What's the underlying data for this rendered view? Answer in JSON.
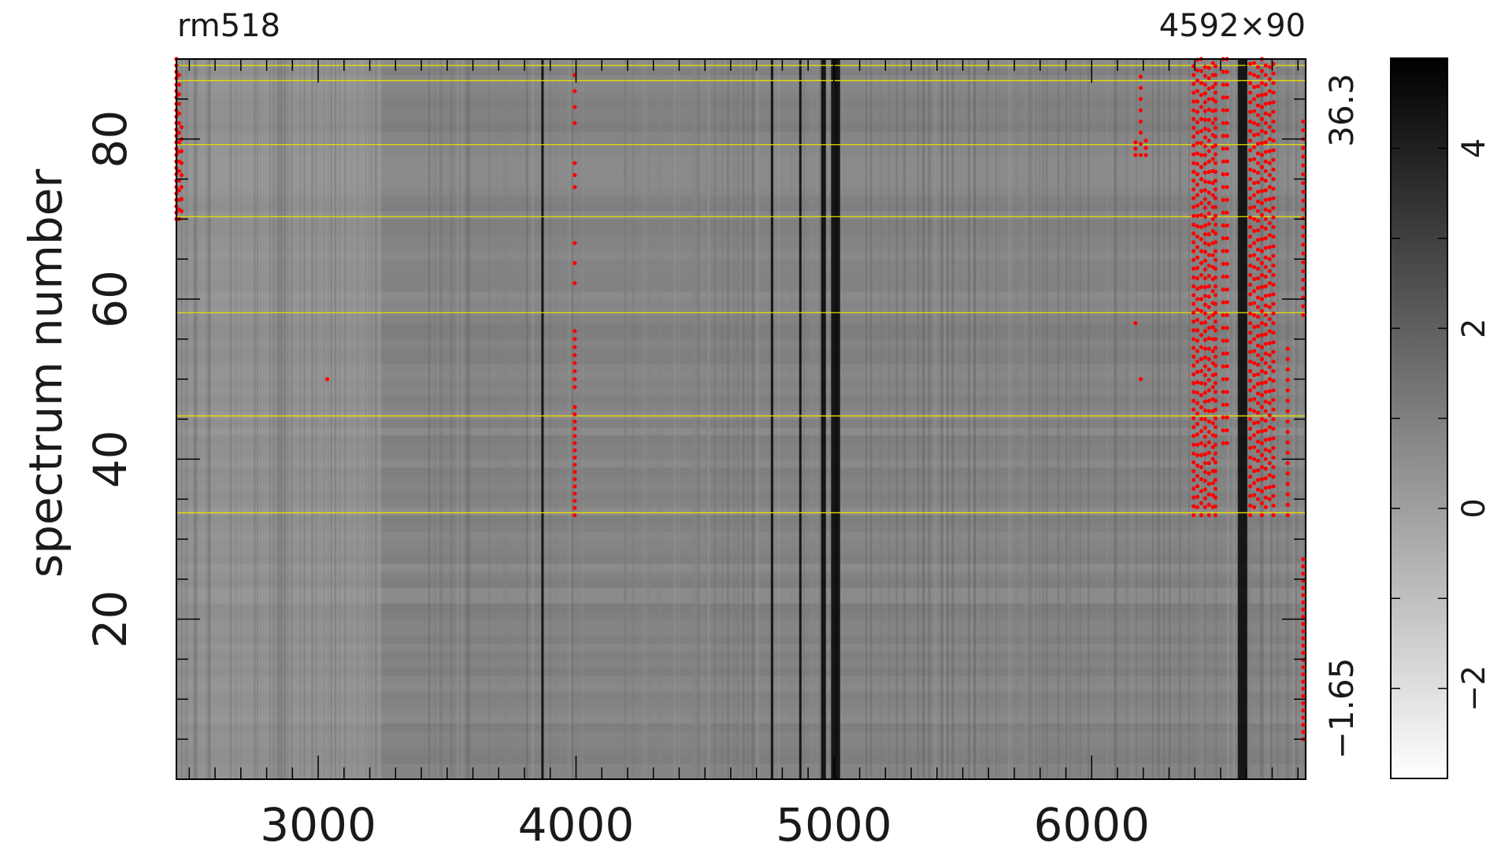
{
  "chart_data": {
    "type": "heatmap",
    "title_left": "rm518",
    "title_right": "4592×90",
    "ylabel": "spectrum number",
    "xlabel": "",
    "x_range": [
      2450,
      6830
    ],
    "y_range": [
      0,
      90
    ],
    "x_ticks": [
      "3000",
      "4000",
      "5000",
      "6000"
    ],
    "y_ticks": [
      "20",
      "40",
      "60",
      "80"
    ],
    "side_scale_labels": [
      "36.3",
      "−1.65"
    ],
    "colorbar": {
      "range": [
        -3,
        5
      ],
      "ticks": [
        "−2",
        "0",
        "2",
        "4"
      ],
      "colormap": "gray_reversed"
    },
    "yellow_lines_spectrum": [
      89.2,
      87.3,
      79.3,
      70.3,
      58.3,
      45.4,
      33.3
    ],
    "dark_columns_x": [
      3870,
      4760,
      4870,
      4960,
      5000,
      5015,
      6585
    ],
    "colors": {
      "grid": "#000000",
      "highlight": "#e8e000",
      "mask": "#ff0000"
    }
  }
}
